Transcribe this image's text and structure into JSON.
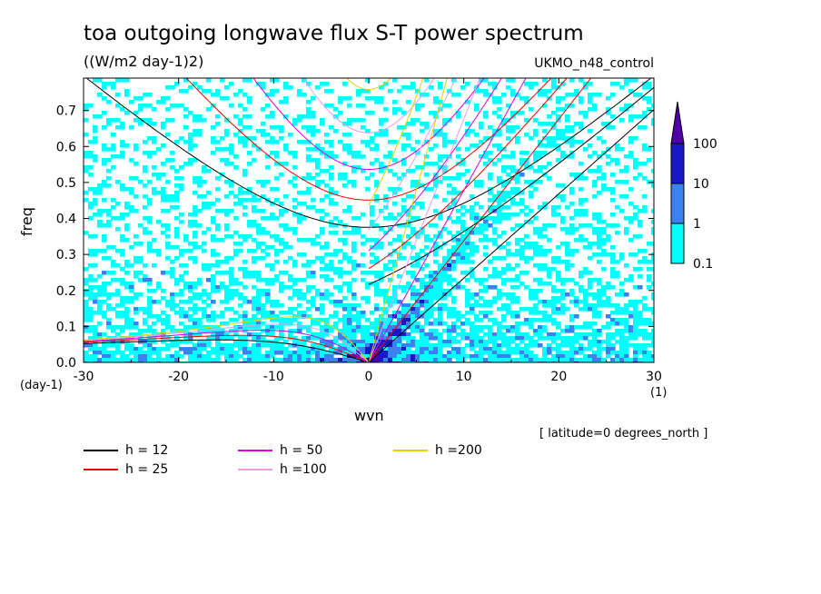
{
  "title": "toa outgoing longwave flux S-T power spectrum",
  "subtitle": "((W/m2 day-1)2)",
  "model_label": "UKMO_n48_control",
  "latitude_note": "[ latitude=0 degrees_north ]",
  "chart_data": {
    "type": "heatmap",
    "xlabel": "wvn",
    "ylabel": "freq",
    "x_unit": "(1)",
    "y_unit": "(day-1)",
    "xlim": [
      -30,
      30
    ],
    "ylim": [
      0,
      0.79
    ],
    "x_ticks": [
      -30,
      -20,
      -10,
      0,
      10,
      20,
      30
    ],
    "y_ticks": [
      0.0,
      0.1,
      0.2,
      0.3,
      0.4,
      0.5,
      0.6,
      0.7
    ],
    "x_tick_labels": [
      "-30",
      "-20",
      "-10",
      "0",
      "10",
      "20",
      "30"
    ],
    "y_tick_labels": [
      "0.0",
      "0.1",
      "0.2",
      "0.3",
      "0.4",
      "0.5",
      "0.6",
      "0.7"
    ],
    "colorbar": {
      "levels": [
        0.1,
        1,
        10,
        100
      ],
      "labels": [
        "0.1",
        "1",
        "10",
        "100"
      ],
      "colors": [
        "#00ffff",
        "#3b82f0",
        "#1818c8",
        "#5000a8"
      ],
      "extend": "max"
    },
    "dispersion_curves": [
      {
        "name": "h = 12",
        "h": 12,
        "color": "#000000"
      },
      {
        "name": "h = 25",
        "h": 25,
        "color": "#ee0000"
      },
      {
        "name": "h = 50",
        "h": 50,
        "color": "#dd00dd"
      },
      {
        "name": "h =100",
        "h": 100,
        "color": "#e89ee8"
      },
      {
        "name": "h =200",
        "h": 200,
        "color": "#e8d000"
      }
    ]
  },
  "legend": [
    {
      "label": "h = 12",
      "color": "#000000"
    },
    {
      "label": "h = 25",
      "color": "#ee0000"
    },
    {
      "label": "h = 50",
      "color": "#dd00dd"
    },
    {
      "label": "h =100",
      "color": "#e89ee8"
    },
    {
      "label": "h =200",
      "color": "#e8d000"
    }
  ]
}
